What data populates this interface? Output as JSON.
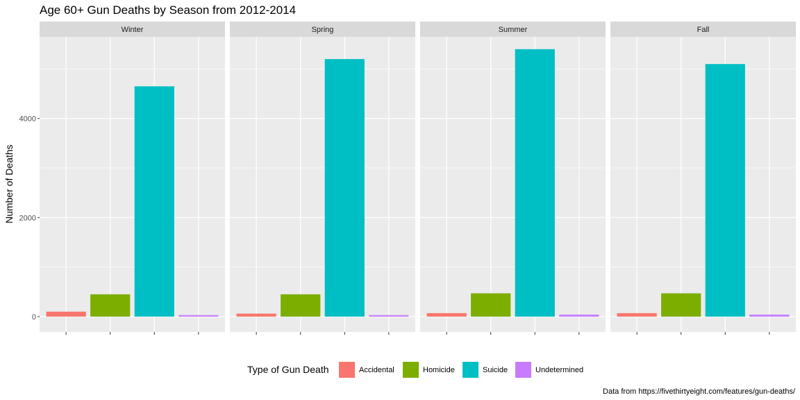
{
  "chart_data": {
    "type": "bar",
    "title": "Age 60+ Gun Deaths by Season from 2012-2014",
    "ylabel": "Number of Deaths",
    "xlabel": "",
    "caption": "Data from https://fivethirtyeight.com/features/gun-deaths/",
    "facets": [
      "Winter",
      "Spring",
      "Summer",
      "Fall"
    ],
    "categories": [
      "Accidental",
      "Homicide",
      "Suicide",
      "Undetermined"
    ],
    "colors": [
      "#F8766D",
      "#7CAE00",
      "#00BFC4",
      "#C77CFF"
    ],
    "values": {
      "Winter": [
        100,
        450,
        4650,
        30
      ],
      "Spring": [
        60,
        450,
        5200,
        30
      ],
      "Summer": [
        70,
        470,
        5400,
        40
      ],
      "Fall": [
        70,
        470,
        5100,
        40
      ]
    },
    "ylim": [
      -310,
      5650
    ],
    "yticks": [
      0,
      2000,
      4000
    ],
    "ytick_labels": [
      "0",
      "2000",
      "4000"
    ],
    "grid": true,
    "legend": {
      "title": "Type of Gun Death",
      "position": "bottom",
      "entries": [
        "Accidental",
        "Homicide",
        "Suicide",
        "Undetermined"
      ]
    }
  }
}
